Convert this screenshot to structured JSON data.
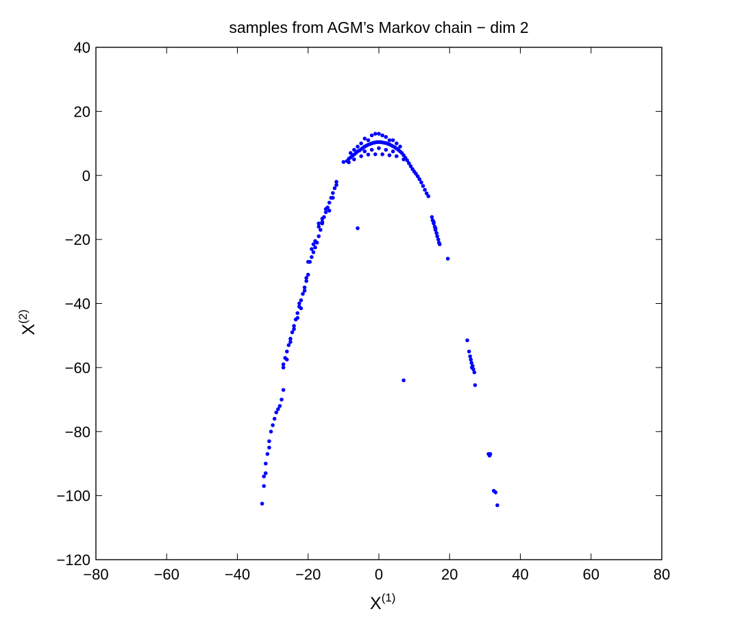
{
  "chart_data": {
    "type": "scatter",
    "title": "samples from AGM’s Markov chain − dim 2",
    "xlabel": {
      "base": "X",
      "sup": "(1)"
    },
    "ylabel": {
      "base": "X",
      "sup": "(2)"
    },
    "xlim": [
      -80,
      80
    ],
    "ylim": [
      -120,
      40
    ],
    "xticks": [
      -80,
      -60,
      -40,
      -20,
      0,
      20,
      40,
      60,
      80
    ],
    "yticks": [
      -120,
      -100,
      -80,
      -60,
      -40,
      -20,
      0,
      20,
      40
    ],
    "grid": false,
    "legend": "none",
    "marker_color": "#0000ff",
    "series": [
      {
        "points": [
          [
            -8.5,
            5.2
          ],
          [
            -8,
            5.6
          ],
          [
            -7.5,
            6.1
          ],
          [
            -7,
            6.5
          ],
          [
            -6.5,
            7
          ],
          [
            -6,
            7.5
          ],
          [
            -5.5,
            7.8
          ],
          [
            -5,
            8.2
          ],
          [
            -4.5,
            8.6
          ],
          [
            -4,
            9
          ],
          [
            -3.5,
            9.3
          ],
          [
            -3,
            9.6
          ],
          [
            -2.5,
            9.8
          ],
          [
            -2,
            10
          ],
          [
            -1.5,
            10.2
          ],
          [
            -1,
            10.3
          ],
          [
            -0.5,
            10.4
          ],
          [
            0,
            10.4
          ],
          [
            0.5,
            10.4
          ],
          [
            1,
            10.3
          ],
          [
            1.5,
            10.2
          ],
          [
            2,
            10.1
          ],
          [
            2.5,
            9.9
          ],
          [
            3,
            9.7
          ],
          [
            3.5,
            9.4
          ],
          [
            4,
            9.1
          ],
          [
            4.5,
            8.8
          ],
          [
            5,
            8.4
          ],
          [
            5.5,
            8
          ],
          [
            6,
            7.5
          ],
          [
            6.5,
            7
          ],
          [
            7,
            6.3
          ],
          [
            7.5,
            5.5
          ],
          [
            8,
            4.7
          ],
          [
            8.5,
            3.8
          ],
          [
            9,
            2.9
          ],
          [
            9.5,
            2
          ],
          [
            10,
            1.2
          ],
          [
            10.5,
            0.5
          ],
          [
            11,
            -0.3
          ],
          [
            11.5,
            -1.2
          ],
          [
            12,
            -2.2
          ],
          [
            12.5,
            -3.3
          ],
          [
            13,
            -4.5
          ],
          [
            13.5,
            -5.6
          ],
          [
            14,
            -6.5
          ],
          [
            -2,
            12.5
          ],
          [
            -1,
            13
          ],
          [
            0,
            13
          ],
          [
            1,
            12.5
          ],
          [
            2,
            12
          ],
          [
            -3,
            11
          ],
          [
            3,
            11
          ],
          [
            -5,
            10
          ],
          [
            -4,
            11.5
          ],
          [
            -6,
            9
          ],
          [
            -7,
            8
          ],
          [
            -8,
            7
          ],
          [
            4,
            11
          ],
          [
            5,
            10
          ],
          [
            6,
            9
          ],
          [
            -9,
            4.5
          ],
          [
            -10,
            4.2
          ],
          [
            -8.5,
            4.1
          ],
          [
            -7,
            5
          ],
          [
            -5,
            6
          ],
          [
            -3,
            6.5
          ],
          [
            -1,
            6.6
          ],
          [
            1,
            6.6
          ],
          [
            3,
            6.3
          ],
          [
            5,
            6
          ],
          [
            7,
            5
          ],
          [
            0,
            8.5
          ],
          [
            -2,
            8
          ],
          [
            2,
            8
          ],
          [
            -4,
            7.5
          ],
          [
            4,
            7.5
          ],
          [
            -12,
            -2
          ],
          [
            -12,
            -3
          ],
          [
            -12.5,
            -4
          ],
          [
            -13,
            -5.5
          ],
          [
            -13.5,
            -7
          ],
          [
            -14,
            -8.5
          ],
          [
            -14.5,
            -10
          ],
          [
            -15,
            -11.5
          ],
          [
            -15.5,
            -13
          ],
          [
            -16,
            -15
          ],
          [
            -16.5,
            -17
          ],
          [
            -17,
            -19
          ],
          [
            -17.5,
            -21
          ],
          [
            -18,
            -22.5
          ],
          [
            -18.5,
            -24
          ],
          [
            -19,
            -25.5
          ],
          [
            -19.5,
            -27
          ],
          [
            -18.5,
            -21.5
          ],
          [
            -17,
            -16
          ],
          [
            -15,
            -10.5
          ],
          [
            -13,
            -7
          ],
          [
            -16,
            -13.5
          ],
          [
            -14,
            -11
          ],
          [
            -18,
            -20.5
          ],
          [
            -19,
            -23
          ],
          [
            -20,
            -27
          ],
          [
            -17,
            -15
          ],
          [
            -20,
            -31
          ],
          [
            -20.5,
            -33
          ],
          [
            -21,
            -35
          ],
          [
            -21.5,
            -37
          ],
          [
            -22,
            -39
          ],
          [
            -22.5,
            -41
          ],
          [
            -23,
            -43
          ],
          [
            -23.5,
            -45
          ],
          [
            -24,
            -47
          ],
          [
            -24.5,
            -49
          ],
          [
            -25,
            -51
          ],
          [
            -25.5,
            -53
          ],
          [
            -26,
            -55
          ],
          [
            -26.5,
            -57
          ],
          [
            -27,
            -59
          ],
          [
            -26,
            -57.5
          ],
          [
            -24,
            -48
          ],
          [
            -22,
            -41.5
          ],
          [
            -21,
            -36
          ],
          [
            -25,
            -52
          ],
          [
            -23,
            -44.5
          ],
          [
            -27,
            -60
          ],
          [
            -20.5,
            -32
          ],
          [
            -22.5,
            -40
          ],
          [
            -27,
            -67
          ],
          [
            -27.5,
            -70
          ],
          [
            -28,
            -72
          ],
          [
            -28.5,
            -73
          ],
          [
            -29,
            -74
          ],
          [
            -29.5,
            -76
          ],
          [
            -30,
            -78
          ],
          [
            -30.5,
            -80
          ],
          [
            -31,
            -83
          ],
          [
            -31,
            -85
          ],
          [
            -31.5,
            -87
          ],
          [
            -32,
            -90
          ],
          [
            -32,
            -93
          ],
          [
            -32.5,
            -94
          ],
          [
            -32.5,
            -97
          ],
          [
            -33,
            -102.5
          ],
          [
            -16,
            -14.5
          ],
          [
            -6,
            -16.5
          ],
          [
            7,
            -64
          ],
          [
            15,
            -13
          ],
          [
            15.2,
            -14
          ],
          [
            15.5,
            -15
          ],
          [
            15.8,
            -16
          ],
          [
            16,
            -17
          ],
          [
            16.3,
            -18
          ],
          [
            16.5,
            -19
          ],
          [
            16.8,
            -20
          ],
          [
            17,
            -21
          ],
          [
            17.2,
            -21.5
          ],
          [
            16,
            -16.5
          ],
          [
            15.5,
            -14.5
          ],
          [
            19.5,
            -26
          ],
          [
            25,
            -51.5
          ],
          [
            25.5,
            -55
          ],
          [
            25.8,
            -56.5
          ],
          [
            26,
            -57.5
          ],
          [
            26.2,
            -58.5
          ],
          [
            26.5,
            -59.5
          ],
          [
            26.7,
            -60.5
          ],
          [
            27,
            -61.5
          ],
          [
            26.3,
            -60
          ],
          [
            27.2,
            -65.5
          ],
          [
            31,
            -87
          ],
          [
            31.3,
            -87.5
          ],
          [
            31.5,
            -87
          ],
          [
            32.5,
            -98.5
          ],
          [
            33,
            -99
          ],
          [
            33.5,
            -103
          ]
        ]
      }
    ]
  }
}
